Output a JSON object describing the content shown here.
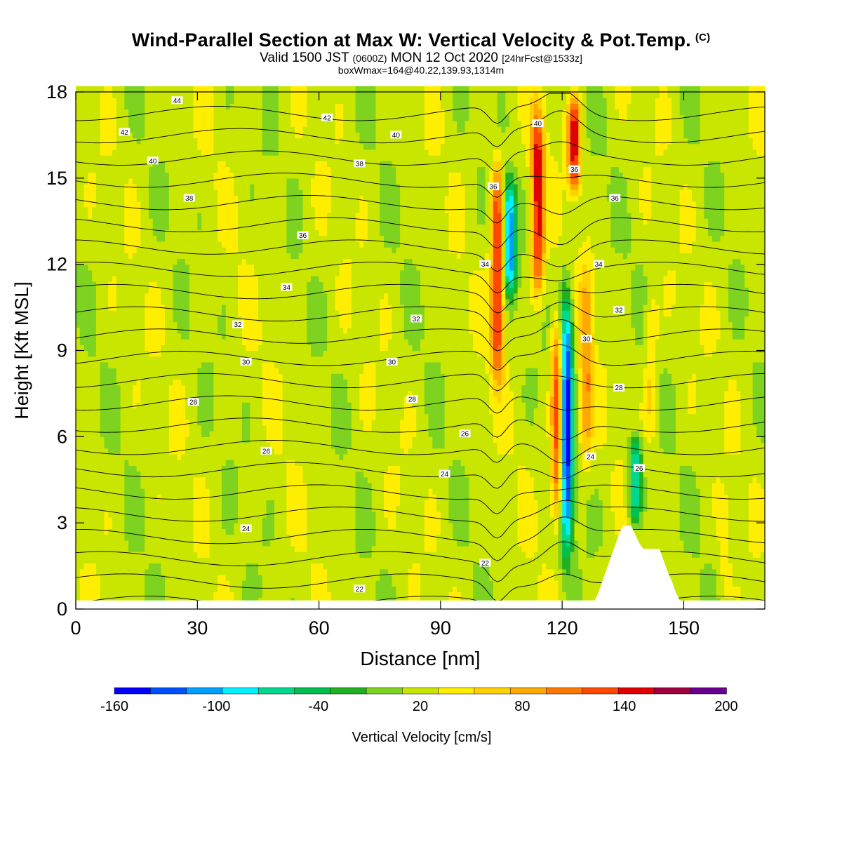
{
  "header": {
    "title": "Wind-Parallel Section at Max W: Vertical Velocity & Pot.Temp.",
    "copyright": "(C)",
    "valid_prefix": "Valid 1500 JST",
    "valid_utc": "(0600Z)",
    "valid_date": "MON 12 Oct 2020",
    "forecast": "[24hrFcst@1533z]",
    "box_wmax": "boxWmax=164@40.22,139.93,1314m"
  },
  "chart_data": {
    "type": "heatmap",
    "xlabel": "Distance [nm]",
    "ylabel": "Height [Kft MSL]",
    "xlim": [
      0,
      170
    ],
    "ylim": [
      0,
      18
    ],
    "x_ticks": [
      0,
      30,
      60,
      90,
      120,
      150
    ],
    "y_ticks": [
      0,
      3,
      6,
      9,
      12,
      15,
      18
    ],
    "colorbar": {
      "label": "Vertical Velocity [cm/s]",
      "tick_labels": [
        -160,
        -100,
        -40,
        20,
        80,
        140,
        200
      ],
      "min": -160,
      "max": 200,
      "colors": [
        "#0000ff",
        "#0050ff",
        "#00a0ff",
        "#00f0ff",
        "#00d890",
        "#00c050",
        "#20b020",
        "#7ed320",
        "#c8e600",
        "#ffee00",
        "#ffd000",
        "#ffa800",
        "#ff7800",
        "#ff4800",
        "#e00000",
        "#a00040",
        "#6a0090"
      ]
    },
    "background_w": 20,
    "updrafts": [
      {
        "x": 104,
        "z0": 8.0,
        "z1": 15.5,
        "w": 150
      },
      {
        "x": 114,
        "z0": 11.0,
        "z1": 17.5,
        "w": 150
      },
      {
        "x": 119,
        "z0": 3.0,
        "z1": 10.0,
        "w": 150
      },
      {
        "x": 123,
        "z0": 14.5,
        "z1": 17.8,
        "w": 150
      },
      {
        "x": 126,
        "z0": 5.0,
        "z1": 12.0,
        "w": 90
      },
      {
        "x": 142,
        "z0": 6.0,
        "z1": 11.0,
        "w": 60
      },
      {
        "x": 160,
        "z0": 0.0,
        "z1": 4.0,
        "w": 40
      }
    ],
    "downdrafts": [
      {
        "x": 107,
        "z0": 11.0,
        "z1": 15.0,
        "w": -110
      },
      {
        "x": 121,
        "z0": 2.0,
        "z1": 11.0,
        "w": -160
      },
      {
        "x": 138,
        "z0": 3.0,
        "z1": 6.0,
        "w": -80
      }
    ],
    "terrain_top": [
      [
        128,
        0.3
      ],
      [
        129,
        0.6
      ],
      [
        130,
        1.0
      ],
      [
        131,
        1.4
      ],
      [
        132,
        1.8
      ],
      [
        133,
        2.2
      ],
      [
        134,
        2.6
      ],
      [
        135,
        2.9
      ],
      [
        137,
        2.9
      ],
      [
        138,
        2.6
      ],
      [
        139,
        2.3
      ],
      [
        140,
        2.1
      ],
      [
        144,
        2.1
      ],
      [
        145,
        1.7
      ],
      [
        146,
        1.3
      ],
      [
        147,
        1.0
      ],
      [
        148,
        0.6
      ],
      [
        149,
        0.3
      ],
      [
        150,
        0.0
      ]
    ],
    "theta_levels": [
      22,
      24,
      26,
      28,
      30,
      32,
      34,
      36,
      38,
      40,
      42,
      44
    ],
    "theta_labels": [
      {
        "x": 70,
        "z": 0.7,
        "text": "22"
      },
      {
        "x": 101,
        "z": 1.6,
        "text": "22"
      },
      {
        "x": 42,
        "z": 2.8,
        "text": "24"
      },
      {
        "x": 91,
        "z": 4.7,
        "text": "24"
      },
      {
        "x": 127,
        "z": 5.3,
        "text": "24"
      },
      {
        "x": 47,
        "z": 5.5,
        "text": "26"
      },
      {
        "x": 96,
        "z": 6.1,
        "text": "26"
      },
      {
        "x": 139,
        "z": 4.9,
        "text": "26"
      },
      {
        "x": 29,
        "z": 7.2,
        "text": "28"
      },
      {
        "x": 83,
        "z": 7.3,
        "text": "28"
      },
      {
        "x": 134,
        "z": 7.7,
        "text": "28"
      },
      {
        "x": 42,
        "z": 8.6,
        "text": "30"
      },
      {
        "x": 78,
        "z": 8.6,
        "text": "30"
      },
      {
        "x": 126,
        "z": 9.4,
        "text": "30"
      },
      {
        "x": 40,
        "z": 9.9,
        "text": "32"
      },
      {
        "x": 84,
        "z": 10.1,
        "text": "32"
      },
      {
        "x": 134,
        "z": 10.4,
        "text": "32"
      },
      {
        "x": 52,
        "z": 11.2,
        "text": "34"
      },
      {
        "x": 101,
        "z": 12.0,
        "text": "34"
      },
      {
        "x": 129,
        "z": 12.0,
        "text": "34"
      },
      {
        "x": 56,
        "z": 13.0,
        "text": "36"
      },
      {
        "x": 103,
        "z": 14.7,
        "text": "36"
      },
      {
        "x": 123,
        "z": 15.3,
        "text": "36"
      },
      {
        "x": 133,
        "z": 14.3,
        "text": "36"
      },
      {
        "x": 28,
        "z": 14.3,
        "text": "38"
      },
      {
        "x": 70,
        "z": 15.5,
        "text": "38"
      },
      {
        "x": 19,
        "z": 15.6,
        "text": "40"
      },
      {
        "x": 79,
        "z": 16.5,
        "text": "40"
      },
      {
        "x": 114,
        "z": 16.9,
        "text": "40"
      },
      {
        "x": 12,
        "z": 16.6,
        "text": "42"
      },
      {
        "x": 62,
        "z": 17.1,
        "text": "42"
      },
      {
        "x": 25,
        "z": 17.7,
        "text": "44"
      }
    ]
  }
}
